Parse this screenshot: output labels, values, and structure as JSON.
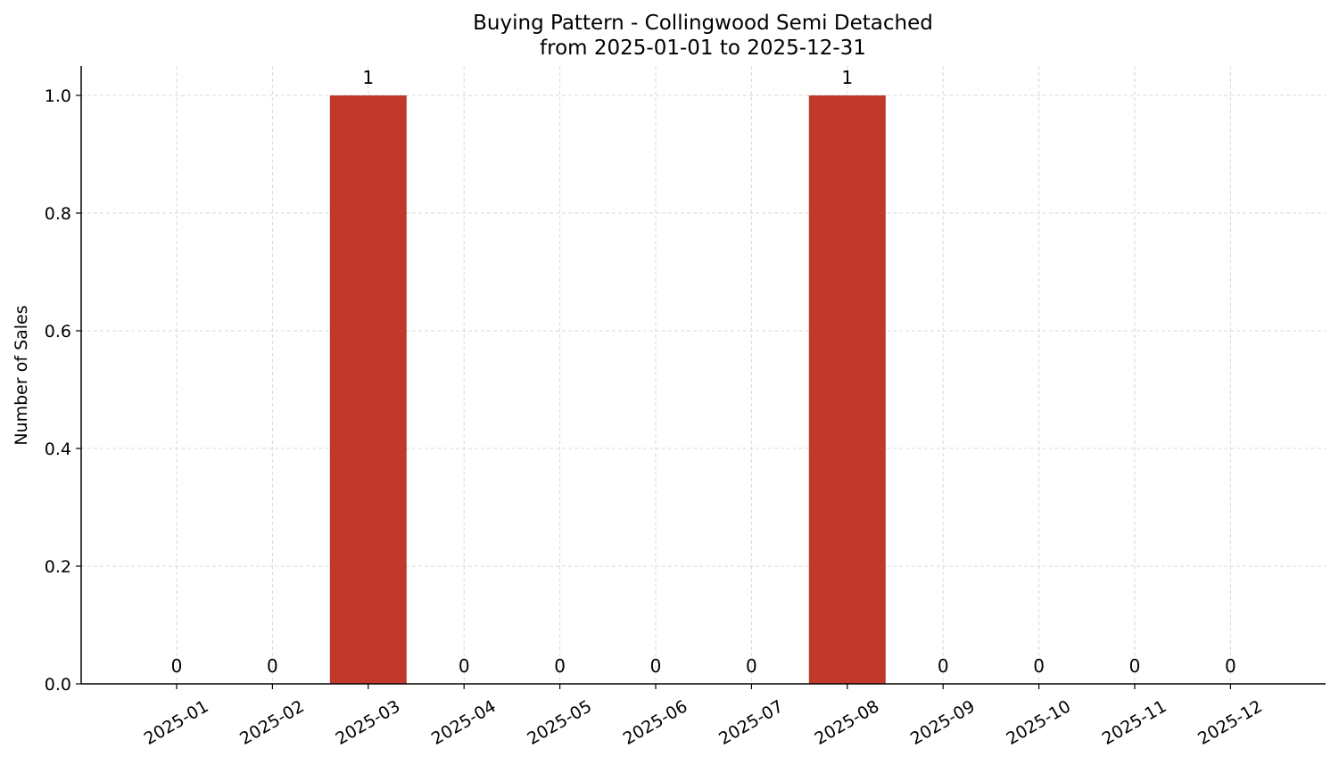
{
  "chart_data": {
    "type": "bar",
    "title": "Buying Pattern - Collingwood Semi Detached",
    "subtitle": "from 2025-01-01 to 2025-12-31",
    "xlabel": "",
    "ylabel": "Number of Sales",
    "categories": [
      "2025-01",
      "2025-02",
      "2025-03",
      "2025-04",
      "2025-05",
      "2025-06",
      "2025-07",
      "2025-08",
      "2025-09",
      "2025-10",
      "2025-11",
      "2025-12"
    ],
    "values": [
      0,
      0,
      1,
      0,
      0,
      0,
      0,
      1,
      0,
      0,
      0,
      0
    ],
    "data_labels": [
      "0",
      "0",
      "1",
      "0",
      "0",
      "0",
      "0",
      "1",
      "0",
      "0",
      "0",
      "0"
    ],
    "ylim": [
      0,
      1.05
    ],
    "yticks": [
      0.0,
      0.2,
      0.4,
      0.6,
      0.8,
      1.0
    ],
    "ytick_labels": [
      "0.0",
      "0.2",
      "0.4",
      "0.6",
      "0.8",
      "1.0"
    ],
    "grid": true,
    "bar_color": "#c0392b",
    "grid_color": "#d9d9d9",
    "axis_color": "#000000"
  }
}
